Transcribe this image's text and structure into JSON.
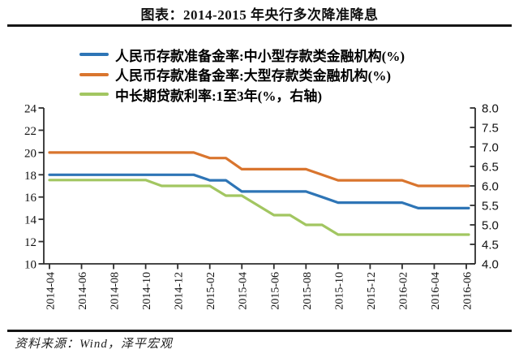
{
  "title": "图表：2014-2015 年央行多次降准降息",
  "source": "资料来源：Wind，泽平宏观",
  "colors": {
    "blue_series": "#2E75B6",
    "orange_series": "#D9752E",
    "green_series": "#A2C661",
    "axis": "#2e2e2e",
    "rule": "#161616",
    "text": "#111111"
  },
  "chart_data": {
    "type": "line",
    "title": "图表：2014-2015 年央行多次降准降息",
    "grid": false,
    "legend_position": "top",
    "x_months": [
      "2014-04",
      "2014-05",
      "2014-06",
      "2014-07",
      "2014-08",
      "2014-09",
      "2014-10",
      "2014-11",
      "2014-12",
      "2015-01",
      "2015-02",
      "2015-03",
      "2015-04",
      "2015-05",
      "2015-06",
      "2015-07",
      "2015-08",
      "2015-09",
      "2015-10",
      "2015-11",
      "2015-12",
      "2016-01",
      "2016-02",
      "2016-03",
      "2016-04",
      "2016-05",
      "2016-06"
    ],
    "x_tick_labels": [
      "2014-04",
      "2014-06",
      "2014-08",
      "2014-10",
      "2014-12",
      "2015-02",
      "2015-04",
      "2015-06",
      "2015-08",
      "2015-10",
      "2015-12",
      "2016-02",
      "2016-04",
      "2016-06"
    ],
    "y_left": {
      "min": 10,
      "max": 24,
      "ticks": [
        "24",
        "22",
        "20",
        "18",
        "16",
        "14",
        "12",
        "10"
      ]
    },
    "y_right": {
      "min": 4.0,
      "max": 8.0,
      "ticks": [
        "8.0",
        "7.5",
        "7.0",
        "6.5",
        "6.0",
        "5.5",
        "5.0",
        "4.5",
        "4.0"
      ]
    },
    "series": [
      {
        "id": "small-medium-rrr",
        "name": "人民币存款准备金率:中小型存款类金融机构(%)",
        "axis": "left",
        "color": "#2E75B6",
        "values": [
          18,
          18,
          18,
          18,
          18,
          18,
          18,
          18,
          18,
          18,
          17.5,
          17.5,
          16.5,
          16.5,
          16.5,
          16.5,
          16.5,
          16,
          15.5,
          15.5,
          15.5,
          15.5,
          15.5,
          15,
          15,
          15,
          15
        ]
      },
      {
        "id": "large-rrr",
        "name": "人民币存款准备金率:大型存款类金融机构(%)",
        "axis": "left",
        "color": "#D9752E",
        "values": [
          20,
          20,
          20,
          20,
          20,
          20,
          20,
          20,
          20,
          20,
          19.5,
          19.5,
          18.5,
          18.5,
          18.5,
          18.5,
          18.5,
          18,
          17.5,
          17.5,
          17.5,
          17.5,
          17.5,
          17,
          17,
          17,
          17
        ]
      },
      {
        "id": "mid-long-loan-rate",
        "name": "中长期贷款利率:1至3年(%，右轴)",
        "axis": "right",
        "color": "#A2C661",
        "values": [
          6.15,
          6.15,
          6.15,
          6.15,
          6.15,
          6.15,
          6.15,
          6,
          6,
          6,
          6,
          5.75,
          5.75,
          5.5,
          5.25,
          5.25,
          5,
          5,
          4.75,
          4.75,
          4.75,
          4.75,
          4.75,
          4.75,
          4.75,
          4.75,
          4.75
        ]
      }
    ]
  }
}
